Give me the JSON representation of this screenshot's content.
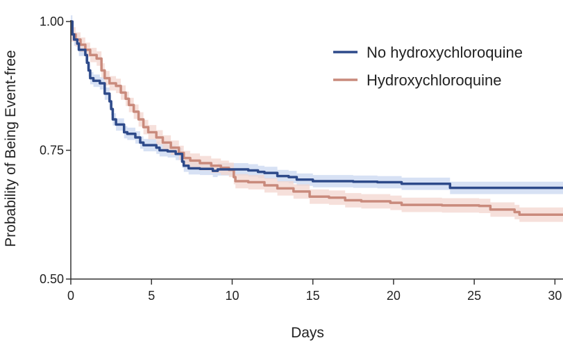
{
  "chart_data": {
    "type": "line",
    "title": "",
    "xlabel": "Days",
    "ylabel": "Probability of Being Event-free",
    "xlim": [
      0,
      30.5
    ],
    "ylim": [
      0.5,
      1.0
    ],
    "xticks": [
      0,
      5,
      10,
      15,
      20,
      25,
      30
    ],
    "xtick_labels": [
      "0",
      "5",
      "10",
      "15",
      "20",
      "25",
      "30"
    ],
    "yticks": [
      0.5,
      0.75,
      1.0
    ],
    "ytick_labels": [
      "0.50",
      "0.75",
      "1.00"
    ],
    "grid": false,
    "legend_position": "top-right",
    "step": true,
    "series": [
      {
        "name": "No hydroxychloroquine",
        "color": "#2e4a8a",
        "band_color": "#c9d7f0",
        "band_halfwidth": 0.012,
        "points": [
          [
            0,
            1.0
          ],
          [
            0.1,
            0.975
          ],
          [
            0.2,
            0.965
          ],
          [
            0.4,
            0.957
          ],
          [
            0.5,
            0.945
          ],
          [
            0.9,
            0.935
          ],
          [
            1.0,
            0.92
          ],
          [
            1.1,
            0.905
          ],
          [
            1.2,
            0.89
          ],
          [
            1.4,
            0.885
          ],
          [
            1.8,
            0.88
          ],
          [
            2.1,
            0.86
          ],
          [
            2.4,
            0.845
          ],
          [
            2.5,
            0.83
          ],
          [
            2.6,
            0.81
          ],
          [
            2.8,
            0.8
          ],
          [
            3.0,
            0.8
          ],
          [
            3.3,
            0.785
          ],
          [
            3.5,
            0.782
          ],
          [
            4.0,
            0.775
          ],
          [
            4.3,
            0.765
          ],
          [
            4.5,
            0.76
          ],
          [
            5.0,
            0.76
          ],
          [
            5.3,
            0.755
          ],
          [
            5.5,
            0.75
          ],
          [
            6.0,
            0.748
          ],
          [
            6.5,
            0.743
          ],
          [
            6.9,
            0.728
          ],
          [
            7.0,
            0.72
          ],
          [
            7.3,
            0.715
          ],
          [
            8.0,
            0.714
          ],
          [
            8.8,
            0.71
          ],
          [
            9.1,
            0.713
          ],
          [
            11.0,
            0.711
          ],
          [
            11.6,
            0.708
          ],
          [
            12.0,
            0.706
          ],
          [
            12.8,
            0.7
          ],
          [
            13.5,
            0.698
          ],
          [
            14.0,
            0.693
          ],
          [
            15.0,
            0.69
          ],
          [
            17.5,
            0.689
          ],
          [
            19.0,
            0.688
          ],
          [
            20.5,
            0.685
          ],
          [
            23.0,
            0.685
          ],
          [
            23.5,
            0.677
          ],
          [
            30.5,
            0.677
          ]
        ]
      },
      {
        "name": "Hydroxychloroquine",
        "color": "#c98a7c",
        "band_color": "#f3d6cf",
        "band_halfwidth": 0.014,
        "points": [
          [
            0,
            0.975
          ],
          [
            0.3,
            0.965
          ],
          [
            0.6,
            0.955
          ],
          [
            0.9,
            0.945
          ],
          [
            1.2,
            0.935
          ],
          [
            1.6,
            0.928
          ],
          [
            1.9,
            0.905
          ],
          [
            2.1,
            0.89
          ],
          [
            2.4,
            0.88
          ],
          [
            2.8,
            0.875
          ],
          [
            3.1,
            0.862
          ],
          [
            3.4,
            0.85
          ],
          [
            3.6,
            0.838
          ],
          [
            3.9,
            0.825
          ],
          [
            4.2,
            0.81
          ],
          [
            4.5,
            0.795
          ],
          [
            4.8,
            0.785
          ],
          [
            5.3,
            0.775
          ],
          [
            5.7,
            0.765
          ],
          [
            6.2,
            0.755
          ],
          [
            6.7,
            0.745
          ],
          [
            7.0,
            0.735
          ],
          [
            7.4,
            0.73
          ],
          [
            8.0,
            0.725
          ],
          [
            8.7,
            0.72
          ],
          [
            9.3,
            0.716
          ],
          [
            9.8,
            0.712
          ],
          [
            10.1,
            0.698
          ],
          [
            10.2,
            0.69
          ],
          [
            11.0,
            0.688
          ],
          [
            12.0,
            0.682
          ],
          [
            12.8,
            0.676
          ],
          [
            13.8,
            0.67
          ],
          [
            14.8,
            0.66
          ],
          [
            16.0,
            0.658
          ],
          [
            17.0,
            0.653
          ],
          [
            18.0,
            0.651
          ],
          [
            19.8,
            0.648
          ],
          [
            20.5,
            0.644
          ],
          [
            23.0,
            0.643
          ],
          [
            25.3,
            0.642
          ],
          [
            26.0,
            0.635
          ],
          [
            27.5,
            0.63
          ],
          [
            27.8,
            0.625
          ],
          [
            30.5,
            0.626
          ]
        ]
      }
    ]
  }
}
